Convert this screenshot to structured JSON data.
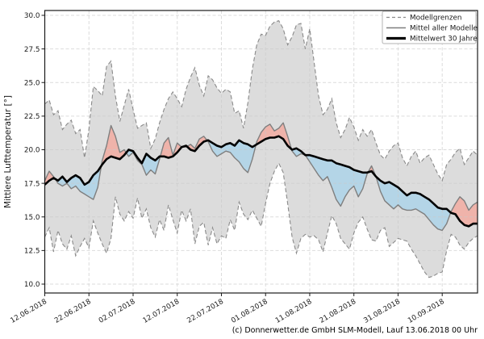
{
  "chart_data": {
    "type": "line",
    "ylabel": "Mittlere Lufttemperatur [°]",
    "footer": "(c) Donnerwetter.de GmbH SLM-Modell, Lauf 13.06.2018 00 Uhr",
    "grid": true,
    "legend_position": "upper right",
    "legend": [
      {
        "label": "Modellgrenzen",
        "style": "dashed-gray"
      },
      {
        "label": "Mittel aller Modelle",
        "style": "solid-gray"
      },
      {
        "label": "Mittelwert 30 Jahre",
        "style": "solid-black-thick"
      }
    ],
    "x_tick_labels": [
      "12.06.2018",
      "22.06.2018",
      "02.07.2018",
      "12.07.2018",
      "22.07.2018",
      "01.08.2018",
      "11.08.2018",
      "21.08.2018",
      "31.08.2018",
      "10.09.2018"
    ],
    "x_tick_days": [
      0,
      10,
      20,
      30,
      40,
      50,
      60,
      70,
      80,
      90
    ],
    "y_tick_labels": [
      "10.0",
      "12.5",
      "15.0",
      "17.5",
      "20.0",
      "22.5",
      "25.0",
      "27.5",
      "30.0"
    ],
    "y_tick_values": [
      10,
      12.5,
      15,
      17.5,
      20,
      22.5,
      25,
      27.5,
      30
    ],
    "x_range_days": [
      0,
      98
    ],
    "ylim": [
      9.3,
      30.4
    ],
    "colors": {
      "band_fill": "#dcdcdc",
      "above_mean_fill": "#efb3aa",
      "below_mean_fill": "#b4d5e7",
      "band_edge": "#8a8a8a",
      "ensemble_line": "#7f7f7f",
      "mean30_line": "#000000",
      "grid": "#c9c9c9"
    },
    "series": {
      "model_max": {
        "name": "Modellgrenzen (oben)",
        "values": [
          23.4,
          23.7,
          22.6,
          22.9,
          21.5,
          21.9,
          22.2,
          21.2,
          21.5,
          19.4,
          21.5,
          24.7,
          24.4,
          24.0,
          26.2,
          26.6,
          24.0,
          22.1,
          23.3,
          24.5,
          23.0,
          21.6,
          21.8,
          22.0,
          20.1,
          20.8,
          22.0,
          23.0,
          23.8,
          24.3,
          23.8,
          23.2,
          24.5,
          25.4,
          26.1,
          24.8,
          24.0,
          25.5,
          25.2,
          24.6,
          24.2,
          24.5,
          24.3,
          22.7,
          22.9,
          21.6,
          23.5,
          26.0,
          27.8,
          28.6,
          28.5,
          29.2,
          29.5,
          29.6,
          29.0,
          27.8,
          28.4,
          29.3,
          29.4,
          27.5,
          29.0,
          26.5,
          24.0,
          22.6,
          23.0,
          23.8,
          22.0,
          20.9,
          21.5,
          22.4,
          21.7,
          20.7,
          21.5,
          21.0,
          21.5,
          20.5,
          19.6,
          19.3,
          19.9,
          20.3,
          20.5,
          19.4,
          18.8,
          19.5,
          19.9,
          19.0,
          19.4,
          19.6,
          18.9,
          18.2,
          17.7,
          18.9,
          19.3,
          19.8,
          20.1,
          18.9,
          19.4,
          19.9,
          19.6
        ]
      },
      "model_min": {
        "name": "Modellgrenzen (unten)",
        "values": [
          13.5,
          14.2,
          12.4,
          14.0,
          13.0,
          12.6,
          13.6,
          12.1,
          12.8,
          13.4,
          12.7,
          14.7,
          13.8,
          13.0,
          12.3,
          13.4,
          16.5,
          15.2,
          14.7,
          15.4,
          14.9,
          16.4,
          14.9,
          15.6,
          14.2,
          13.5,
          14.8,
          14.0,
          15.9,
          14.8,
          13.8,
          15.5,
          14.7,
          15.6,
          13.0,
          14.3,
          14.6,
          12.9,
          14.2,
          13.0,
          13.6,
          13.4,
          14.8,
          14.0,
          16.1,
          15.2,
          14.8,
          15.5,
          14.9,
          14.3,
          16.0,
          17.5,
          18.4,
          19.0,
          18.3,
          16.0,
          13.5,
          12.3,
          13.4,
          13.7,
          13.5,
          13.6,
          13.3,
          12.4,
          13.8,
          15.1,
          14.5,
          13.4,
          13.0,
          12.6,
          13.8,
          14.6,
          15.0,
          14.1,
          13.3,
          13.2,
          14.0,
          14.2,
          12.8,
          13.1,
          13.4,
          13.3,
          13.2,
          12.6,
          12.1,
          11.5,
          10.9,
          10.5,
          10.6,
          10.8,
          10.9,
          12.5,
          13.7,
          13.5,
          12.9,
          12.6,
          13.1,
          13.4,
          13.6
        ]
      },
      "ensemble_mean": {
        "name": "Mittel aller Modelle",
        "values": [
          17.7,
          18.4,
          18.0,
          17.5,
          17.3,
          17.5,
          17.1,
          17.3,
          16.9,
          16.7,
          16.5,
          16.3,
          17.2,
          19.2,
          20.3,
          21.8,
          21.0,
          19.8,
          20.0,
          19.5,
          19.8,
          19.2,
          18.9,
          18.1,
          18.5,
          18.2,
          19.3,
          20.5,
          20.9,
          19.6,
          20.5,
          20.2,
          20.2,
          20.4,
          20.1,
          20.8,
          21.0,
          20.6,
          19.9,
          19.5,
          19.7,
          19.9,
          19.8,
          19.4,
          19.1,
          18.6,
          18.3,
          19.3,
          20.6,
          21.3,
          21.7,
          21.9,
          21.4,
          21.6,
          22.0,
          21.0,
          19.9,
          19.5,
          19.7,
          19.6,
          19.1,
          18.6,
          18.1,
          17.7,
          18.0,
          17.2,
          16.3,
          15.8,
          16.5,
          17.0,
          17.3,
          16.5,
          17.1,
          18.2,
          18.8,
          18.0,
          16.9,
          16.2,
          15.9,
          15.6,
          15.9,
          15.6,
          15.5,
          15.5,
          15.6,
          15.4,
          15.2,
          14.8,
          14.4,
          14.1,
          14.0,
          14.5,
          15.4,
          16.0,
          16.5,
          16.2,
          15.5,
          15.9,
          16.1
        ]
      },
      "mean_30y": {
        "name": "Mittelwert 30 Jahre",
        "values": [
          17.4,
          17.7,
          17.9,
          17.7,
          18.0,
          17.6,
          17.9,
          18.1,
          17.9,
          17.4,
          17.6,
          18.1,
          18.4,
          18.9,
          19.3,
          19.5,
          19.4,
          19.3,
          19.6,
          20.0,
          19.9,
          19.4,
          19.0,
          19.7,
          19.4,
          19.2,
          19.5,
          19.5,
          19.4,
          19.5,
          19.8,
          20.2,
          20.3,
          20.0,
          19.9,
          20.3,
          20.6,
          20.7,
          20.5,
          20.3,
          20.2,
          20.4,
          20.5,
          20.3,
          20.7,
          20.5,
          20.4,
          20.2,
          20.4,
          20.6,
          20.8,
          20.9,
          20.9,
          21.0,
          20.8,
          20.3,
          20.0,
          20.1,
          19.9,
          19.6,
          19.6,
          19.5,
          19.4,
          19.3,
          19.2,
          19.2,
          19.0,
          18.9,
          18.8,
          18.7,
          18.5,
          18.4,
          18.3,
          18.3,
          18.4,
          18.0,
          17.7,
          17.5,
          17.6,
          17.4,
          17.2,
          16.9,
          16.6,
          16.8,
          16.8,
          16.7,
          16.5,
          16.3,
          16.0,
          15.7,
          15.6,
          15.6,
          15.3,
          15.2,
          14.7,
          14.4,
          14.3,
          14.5,
          14.5
        ]
      }
    }
  }
}
